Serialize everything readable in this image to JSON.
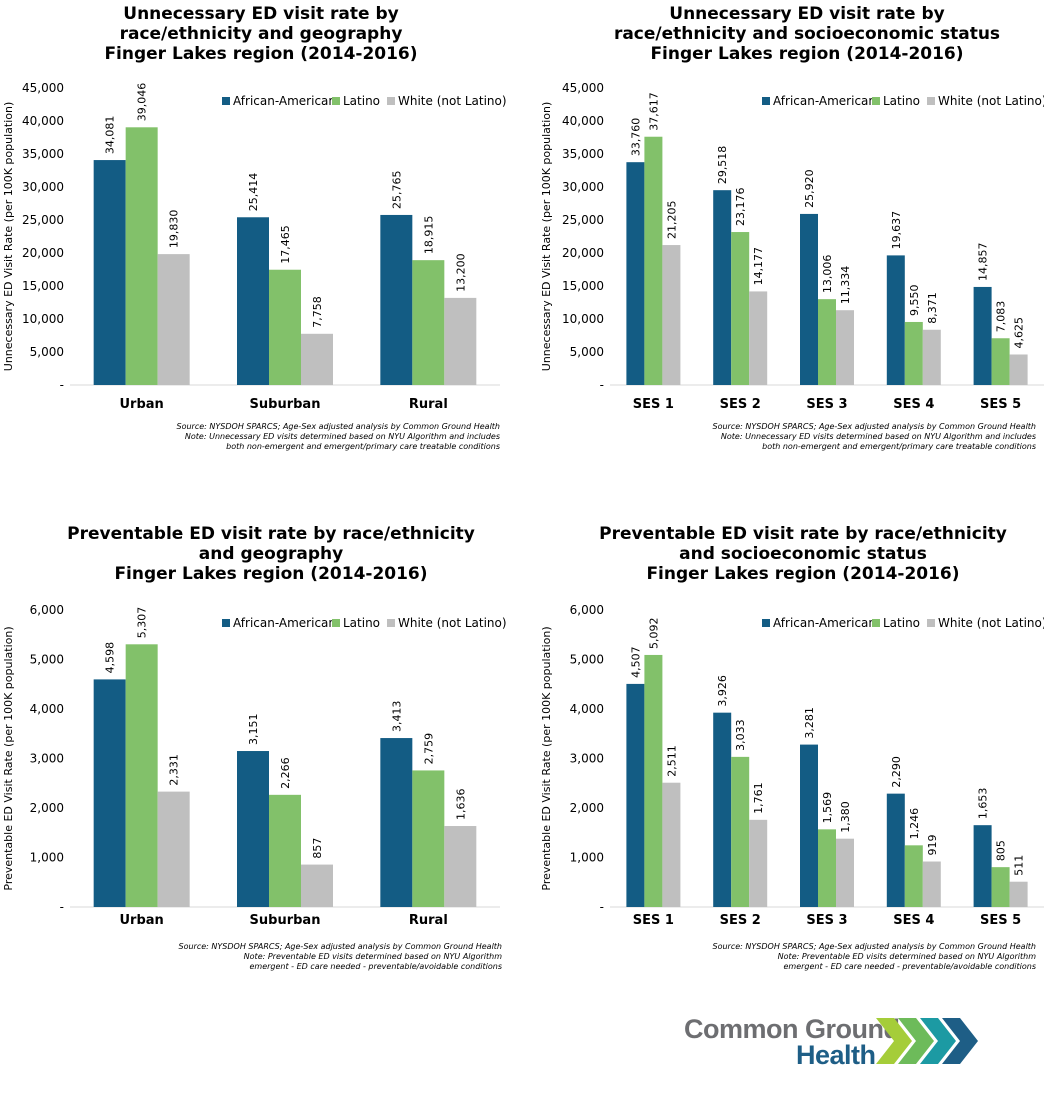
{
  "colors": {
    "african_american": "#135c84",
    "latino": "#82c16a",
    "white": "#bfbfbf"
  },
  "legend": [
    "African-American",
    "Latino",
    "White (not Latino)"
  ],
  "chart_data": [
    {
      "type": "bar",
      "title_lines": [
        "Unnecessary ED visit rate by",
        "race/ethnicity and geography",
        "Finger Lakes region (2014-2016)"
      ],
      "ylabel": "Unnecessary ED Visit Rate (per 100K population)",
      "ylim": [
        0,
        45000
      ],
      "yticks": [
        "-",
        "5,000",
        "10,000",
        "15,000",
        "20,000",
        "25,000",
        "30,000",
        "35,000",
        "40,000",
        "45,000"
      ],
      "categories": [
        "Urban",
        "Suburban",
        "Rural"
      ],
      "series": [
        {
          "name": "African-American",
          "values": [
            34081,
            25414,
            25765
          ],
          "labels": [
            "34,081",
            "25,414",
            "25,765"
          ]
        },
        {
          "name": "Latino",
          "values": [
            39046,
            17465,
            18915
          ],
          "labels": [
            "39,046",
            "17,465",
            "18,915"
          ]
        },
        {
          "name": "White (not Latino)",
          "values": [
            19830,
            7758,
            13200
          ],
          "labels": [
            "19,830",
            "7,758",
            "13,200"
          ]
        }
      ],
      "legend_position": "top-right",
      "grid": false,
      "footnote": [
        "Source: NYSDOH SPARCS; Age-Sex adjusted analysis by Common Ground Health",
        "Note: Unnecessary ED visits determined based on NYU Algorithm and includes",
        "both non-emergent and emergent/primary care treatable conditions"
      ]
    },
    {
      "type": "bar",
      "title_lines": [
        "Unnecessary ED visit rate by",
        "race/ethnicity and socioeconomic status",
        "Finger Lakes region (2014-2016)"
      ],
      "ylabel": "Unnecessary ED Visit Rate (per 100K population)",
      "ylim": [
        0,
        45000
      ],
      "yticks": [
        "-",
        "5,000",
        "10,000",
        "15,000",
        "20,000",
        "25,000",
        "30,000",
        "35,000",
        "40,000",
        "45,000"
      ],
      "categories": [
        "SES 1",
        "SES 2",
        "SES 3",
        "SES 4",
        "SES 5"
      ],
      "series": [
        {
          "name": "African-American",
          "values": [
            33760,
            29518,
            25920,
            19637,
            14857
          ],
          "labels": [
            "33,760",
            "29,518",
            "25,920",
            "19,637",
            "14,857"
          ]
        },
        {
          "name": "Latino",
          "values": [
            37617,
            23176,
            13006,
            9550,
            7083
          ],
          "labels": [
            "37,617",
            "23,176",
            "13,006",
            "9,550",
            "7,083"
          ]
        },
        {
          "name": "White (not Latino)",
          "values": [
            21205,
            14177,
            11334,
            8371,
            4625
          ],
          "labels": [
            "21,205",
            "14,177",
            "11,334",
            "8,371",
            "4,625"
          ]
        }
      ],
      "legend_position": "top-right",
      "grid": false,
      "footnote": [
        "Source: NYSDOH SPARCS; Age-Sex adjusted analysis by Common Ground Health",
        "Note: Unnecessary ED visits determined based on NYU Algorithm and includes",
        "both non-emergent and emergent/primary care treatable conditions"
      ]
    },
    {
      "type": "bar",
      "title_lines": [
        "Preventable ED visit rate by race/ethnicity",
        "and geography",
        "Finger Lakes region (2014-2016)"
      ],
      "ylabel": "Preventable ED Visit Rate (per 100K population)",
      "ylim": [
        0,
        6000
      ],
      "yticks": [
        "-",
        "1,000",
        "2,000",
        "3,000",
        "4,000",
        "5,000",
        "6,000"
      ],
      "categories": [
        "Urban",
        "Suburban",
        "Rural"
      ],
      "series": [
        {
          "name": "African-American",
          "values": [
            4598,
            3151,
            3413
          ],
          "labels": [
            "4,598",
            "3,151",
            "3,413"
          ]
        },
        {
          "name": "Latino",
          "values": [
            5307,
            2266,
            2759
          ],
          "labels": [
            "5,307",
            "2,266",
            "2,759"
          ]
        },
        {
          "name": "White (not Latino)",
          "values": [
            2331,
            857,
            1636
          ],
          "labels": [
            "2,331",
            "857",
            "1,636"
          ]
        }
      ],
      "legend_position": "top-right",
      "grid": false,
      "footnote": [
        "Source: NYSDOH SPARCS; Age-Sex adjusted analysis by Common Ground Health",
        "Note: Preventable ED visits determined based on NYU Algorithm",
        "emergent - ED care needed - preventable/avoidable conditions"
      ]
    },
    {
      "type": "bar",
      "title_lines": [
        "Preventable ED visit rate by race/ethnicity",
        "and socioeconomic status",
        "Finger Lakes region (2014-2016)"
      ],
      "ylabel": "Preventable ED Visit Rate (per 100K population)",
      "ylim": [
        0,
        6000
      ],
      "yticks": [
        "-",
        "1,000",
        "2,000",
        "3,000",
        "4,000",
        "5,000",
        "6,000"
      ],
      "categories": [
        "SES 1",
        "SES 2",
        "SES 3",
        "SES 4",
        "SES 5"
      ],
      "series": [
        {
          "name": "African-American",
          "values": [
            4507,
            3926,
            3281,
            2290,
            1653
          ],
          "labels": [
            "4,507",
            "3,926",
            "3,281",
            "2,290",
            "1,653"
          ]
        },
        {
          "name": "Latino",
          "values": [
            5092,
            3033,
            1569,
            1246,
            805
          ],
          "labels": [
            "5,092",
            "3,033",
            "1,569",
            "1,246",
            "805"
          ]
        },
        {
          "name": "White (not Latino)",
          "values": [
            2511,
            1761,
            1380,
            919,
            511
          ],
          "labels": [
            "2,511",
            "1,761",
            "1,380",
            "919",
            "511"
          ]
        }
      ],
      "legend_position": "top-right",
      "grid": false,
      "footnote": [
        "Source: NYSDOH SPARCS; Age-Sex adjusted analysis by Common Ground Health",
        "Note: Preventable ED visits determined based on NYU Algorithm",
        "emergent - ED care needed - preventable/avoidable conditions"
      ]
    }
  ],
  "logo": {
    "line1": "Common Ground",
    "line2": "Health",
    "icon": "chevrons-logo-icon",
    "chevron_colors": [
      "#a5cd39",
      "#6dbb5a",
      "#1c9aa3",
      "#1e5e86"
    ]
  }
}
